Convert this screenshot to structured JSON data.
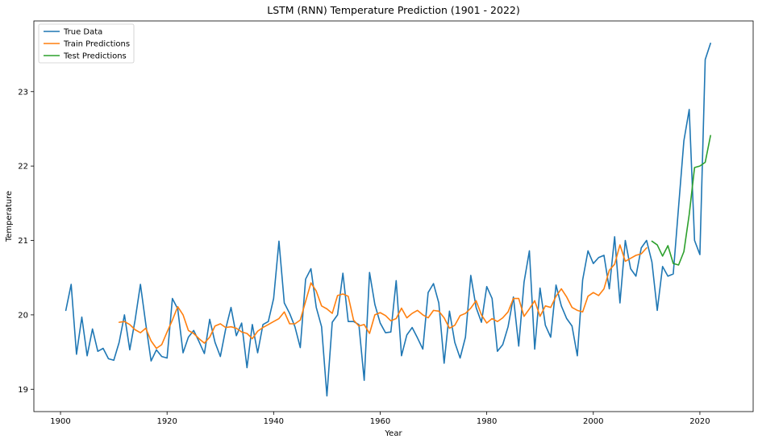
{
  "chart_data": {
    "type": "line",
    "title": "LSTM (RNN) Temperature Prediction (1901 - 2022)",
    "xlabel": "Year",
    "ylabel": "Temperature",
    "xlim": [
      1895,
      2030
    ],
    "ylim": [
      18.7,
      23.95
    ],
    "xticks": [
      1900,
      1920,
      1940,
      1960,
      1980,
      2000,
      2020
    ],
    "yticks": [
      19,
      20,
      21,
      22,
      23
    ],
    "grid": false,
    "legend_position": "top-left",
    "series": [
      {
        "name": "True Data",
        "color": "#1f77b4",
        "x": [
          1901,
          1902,
          1903,
          1904,
          1905,
          1906,
          1907,
          1908,
          1909,
          1910,
          1911,
          1912,
          1913,
          1914,
          1915,
          1916,
          1917,
          1918,
          1919,
          1920,
          1921,
          1922,
          1923,
          1924,
          1925,
          1926,
          1927,
          1928,
          1929,
          1930,
          1931,
          1932,
          1933,
          1934,
          1935,
          1936,
          1937,
          1938,
          1939,
          1940,
          1941,
          1942,
          1943,
          1944,
          1945,
          1946,
          1947,
          1948,
          1949,
          1950,
          1951,
          1952,
          1953,
          1954,
          1955,
          1956,
          1957,
          1958,
          1959,
          1960,
          1961,
          1962,
          1963,
          1964,
          1965,
          1966,
          1967,
          1968,
          1969,
          1970,
          1971,
          1972,
          1973,
          1974,
          1975,
          1976,
          1977,
          1978,
          1979,
          1980,
          1981,
          1982,
          1983,
          1984,
          1985,
          1986,
          1987,
          1988,
          1989,
          1990,
          1991,
          1992,
          1993,
          1994,
          1995,
          1996,
          1997,
          1998,
          1999,
          2000,
          2001,
          2002,
          2003,
          2004,
          2005,
          2006,
          2007,
          2008,
          2009,
          2010,
          2011,
          2012,
          2013,
          2014,
          2015,
          2016,
          2017,
          2018,
          2019,
          2020,
          2021,
          2022
        ],
        "y": [
          20.06,
          20.41,
          19.47,
          19.97,
          19.45,
          19.81,
          19.51,
          19.55,
          19.41,
          19.39,
          19.63,
          20.0,
          19.53,
          19.93,
          20.41,
          19.88,
          19.38,
          19.53,
          19.44,
          19.42,
          20.22,
          20.08,
          19.49,
          19.7,
          19.79,
          19.64,
          19.48,
          19.94,
          19.63,
          19.44,
          19.81,
          20.1,
          19.72,
          19.89,
          19.29,
          19.87,
          19.49,
          19.87,
          19.91,
          20.22,
          20.99,
          20.16,
          20.02,
          19.84,
          19.56,
          20.48,
          20.62,
          20.1,
          19.84,
          18.91,
          19.9,
          20.0,
          20.56,
          19.91,
          19.91,
          19.87,
          19.12,
          20.57,
          20.14,
          19.89,
          19.76,
          19.77,
          20.46,
          19.45,
          19.73,
          19.83,
          19.69,
          19.54,
          20.3,
          20.42,
          20.16,
          19.35,
          20.05,
          19.63,
          19.42,
          19.7,
          20.53,
          20.1,
          19.9,
          20.38,
          20.22,
          19.51,
          19.6,
          19.84,
          20.24,
          19.58,
          20.44,
          20.86,
          19.54,
          20.36,
          19.86,
          19.7,
          20.4,
          20.12,
          19.95,
          19.85,
          19.45,
          20.47,
          20.86,
          20.69,
          20.77,
          20.8,
          20.35,
          21.05,
          20.16,
          21.0,
          20.62,
          20.52,
          20.9,
          21.0,
          20.71,
          20.06,
          20.65,
          20.52,
          20.55,
          21.45,
          22.34,
          22.76,
          21.0,
          20.81,
          23.43,
          23.65
        ]
      },
      {
        "name": "Train Predictions",
        "color": "#ff7f0e",
        "x": [
          1911,
          1912,
          1913,
          1914,
          1915,
          1916,
          1917,
          1918,
          1919,
          1920,
          1921,
          1922,
          1923,
          1924,
          1925,
          1926,
          1927,
          1928,
          1929,
          1930,
          1931,
          1932,
          1933,
          1934,
          1935,
          1936,
          1937,
          1938,
          1939,
          1940,
          1941,
          1942,
          1943,
          1944,
          1945,
          1946,
          1947,
          1948,
          1949,
          1950,
          1951,
          1952,
          1953,
          1954,
          1955,
          1956,
          1957,
          1958,
          1959,
          1960,
          1961,
          1962,
          1963,
          1964,
          1965,
          1966,
          1967,
          1968,
          1969,
          1970,
          1971,
          1972,
          1973,
          1974,
          1975,
          1976,
          1977,
          1978,
          1979,
          1980,
          1981,
          1982,
          1983,
          1984,
          1985,
          1986,
          1987,
          1988,
          1989,
          1990,
          1991,
          1992,
          1993,
          1994,
          1995,
          1996,
          1997,
          1998,
          1999,
          2000,
          2001,
          2002,
          2003,
          2004,
          2005,
          2006,
          2007,
          2008,
          2009,
          2010
        ],
        "y": [
          19.9,
          19.91,
          19.87,
          19.8,
          19.76,
          19.82,
          19.65,
          19.55,
          19.6,
          19.77,
          19.93,
          20.11,
          20.0,
          19.79,
          19.75,
          19.68,
          19.62,
          19.7,
          19.85,
          19.88,
          19.83,
          19.84,
          19.82,
          19.77,
          19.75,
          19.68,
          19.78,
          19.83,
          19.87,
          19.91,
          19.95,
          20.04,
          19.88,
          19.88,
          19.93,
          20.18,
          20.43,
          20.32,
          20.12,
          20.08,
          20.02,
          20.26,
          20.28,
          20.25,
          19.93,
          19.85,
          19.87,
          19.75,
          20.0,
          20.03,
          19.99,
          19.92,
          19.95,
          20.09,
          19.96,
          20.02,
          20.06,
          20.0,
          19.96,
          20.06,
          20.05,
          19.96,
          19.82,
          19.86,
          19.99,
          20.02,
          20.09,
          20.19,
          20.0,
          19.89,
          19.95,
          19.91,
          19.96,
          20.04,
          20.22,
          20.22,
          19.98,
          20.08,
          20.19,
          19.98,
          20.12,
          20.1,
          20.25,
          20.35,
          20.24,
          20.1,
          20.06,
          20.04,
          20.25,
          20.3,
          20.26,
          20.35,
          20.6,
          20.68,
          20.94,
          20.72,
          20.76,
          20.8,
          20.82,
          20.9
        ]
      },
      {
        "name": "Test Predictions",
        "color": "#2ca02c",
        "x": [
          2011,
          2012,
          2013,
          2014,
          2015,
          2016,
          2017,
          2018,
          2019,
          2020,
          2021,
          2022
        ],
        "y": [
          20.99,
          20.94,
          20.79,
          20.93,
          20.69,
          20.67,
          20.85,
          21.35,
          21.98,
          22.0,
          22.05,
          22.41
        ]
      }
    ]
  }
}
